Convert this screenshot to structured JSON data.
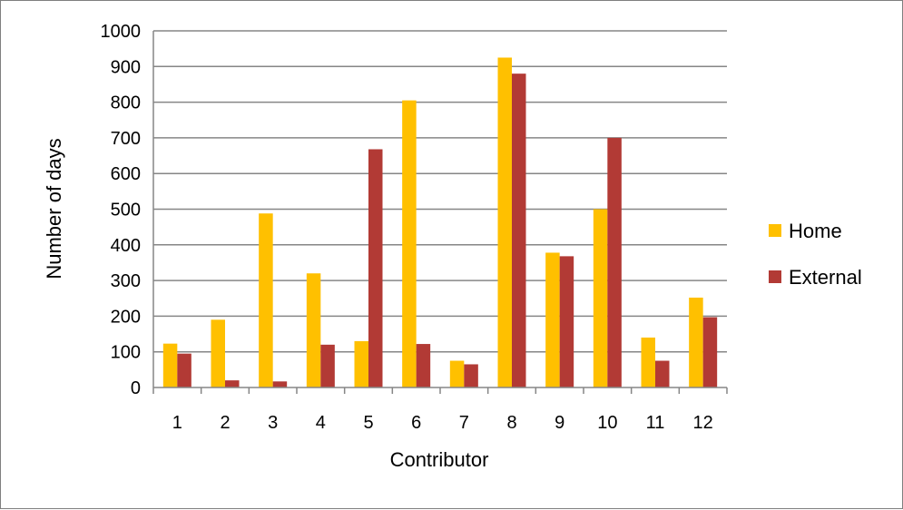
{
  "chart_data": {
    "type": "bar",
    "title": "",
    "xlabel": "Contributor",
    "ylabel": "Number of days",
    "categories": [
      "1",
      "2",
      "3",
      "4",
      "5",
      "6",
      "7",
      "8",
      "9",
      "10",
      "11",
      "12"
    ],
    "series": [
      {
        "name": "Home",
        "color": "#FFC000",
        "values": [
          123,
          190,
          488,
          320,
          130,
          805,
          75,
          925,
          378,
          500,
          140,
          252
        ]
      },
      {
        "name": "External",
        "color": "#B23A35",
        "values": [
          95,
          20,
          17,
          120,
          668,
          122,
          65,
          880,
          368,
          700,
          75,
          197
        ]
      }
    ],
    "ylim": [
      0,
      1000
    ],
    "yticks": [
      "0",
      "100",
      "200",
      "300",
      "400",
      "500",
      "600",
      "700",
      "800",
      "900",
      "1000"
    ],
    "grid": true,
    "legend_position": "right"
  }
}
